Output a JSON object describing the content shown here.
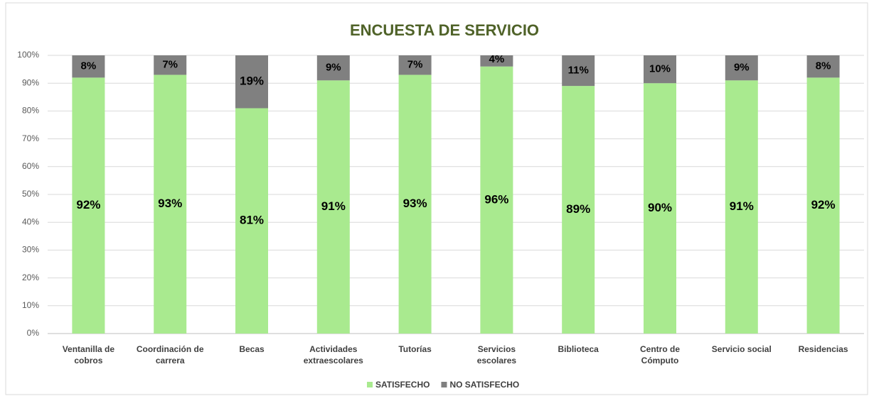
{
  "chart_data": {
    "type": "stacked_bar",
    "title": "ENCUESTA DE SERVICIO",
    "categories": [
      "Ventanilla de cobros",
      "Coordinación de carrera",
      "Becas",
      "Actividades extraescolares",
      "Tutorías",
      "Servicios escolares",
      "Biblioteca",
      "Centro de Cómputo",
      "Servicio social",
      "Residencias"
    ],
    "series": [
      {
        "name": "SATISFECHO",
        "color": "#a9ea8f",
        "values": [
          92,
          93,
          81,
          91,
          93,
          96,
          89,
          90,
          91,
          92
        ],
        "value_labels": [
          "92%",
          "93%",
          "81%",
          "91%",
          "93%",
          "96%",
          "89%",
          "90%",
          "91%",
          "92%"
        ]
      },
      {
        "name": "NO SATISFECHO",
        "color": "#808080",
        "values": [
          8,
          7,
          19,
          9,
          7,
          4,
          11,
          10,
          9,
          8
        ],
        "value_labels": [
          "8%",
          "7%",
          "19%",
          "9%",
          "7%",
          "4%",
          "11%",
          "10%",
          "9%",
          "8%"
        ]
      }
    ],
    "ylim": [
      0,
      100
    ],
    "yticks": [
      {
        "value": 0,
        "label": "0%"
      },
      {
        "value": 10,
        "label": "10%"
      },
      {
        "value": 20,
        "label": "20%"
      },
      {
        "value": 30,
        "label": "30%"
      },
      {
        "value": 40,
        "label": "40%"
      },
      {
        "value": 50,
        "label": "50%"
      },
      {
        "value": 60,
        "label": "60%"
      },
      {
        "value": 70,
        "label": "70%"
      },
      {
        "value": 80,
        "label": "80%"
      },
      {
        "value": 90,
        "label": "90%"
      },
      {
        "value": 100,
        "label": "100%"
      }
    ],
    "grid": true,
    "legend": "bottom"
  }
}
